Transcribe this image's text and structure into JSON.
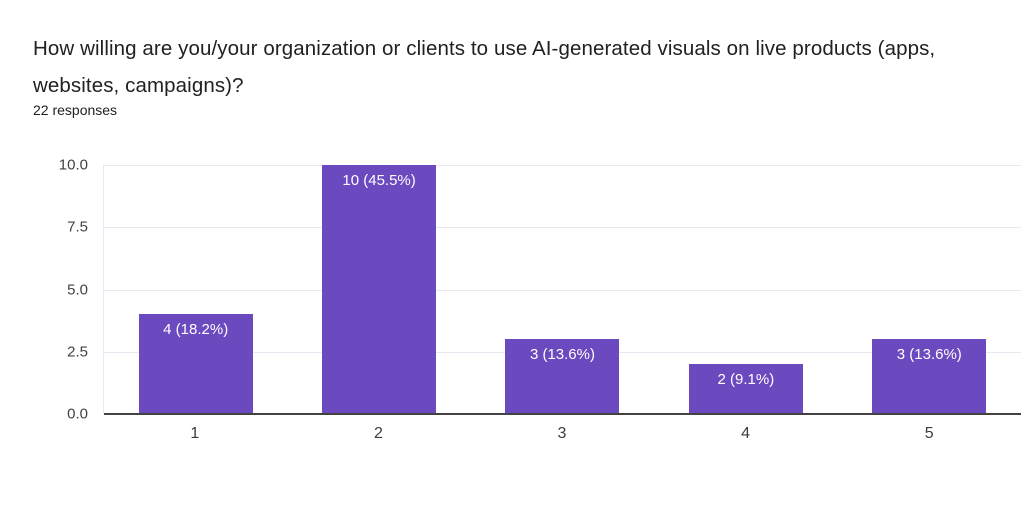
{
  "header": {
    "title": "How willing are you/your organization or clients to use AI-generated visuals on live products (apps, websites, campaigns)?",
    "responses": "22 responses"
  },
  "chart_data": {
    "type": "bar",
    "title": "How willing are you/your organization or clients to use AI-generated visuals on live products (apps, websites, campaigns)?",
    "subtitle": "22 responses",
    "total_responses": 22,
    "categories": [
      "1",
      "2",
      "3",
      "4",
      "5"
    ],
    "values": [
      4,
      10,
      3,
      2,
      3
    ],
    "percentages": [
      18.2,
      45.5,
      13.6,
      9.1,
      13.6
    ],
    "bar_labels": [
      "4 (18.2%)",
      "10 (45.5%)",
      "3 (13.6%)",
      "2 (9.1%)",
      "3 (13.6%)"
    ],
    "xlabel": "",
    "ylabel": "",
    "ylim": [
      0,
      10
    ],
    "y_ticks": [
      "0.0",
      "2.5",
      "5.0",
      "7.5",
      "10.0"
    ],
    "grid": true,
    "legend": "none",
    "bar_color": "#6b49bf",
    "gridline_color": "#ece6f2",
    "axis_color": "#424242",
    "value_label_color": "#ffffff"
  }
}
